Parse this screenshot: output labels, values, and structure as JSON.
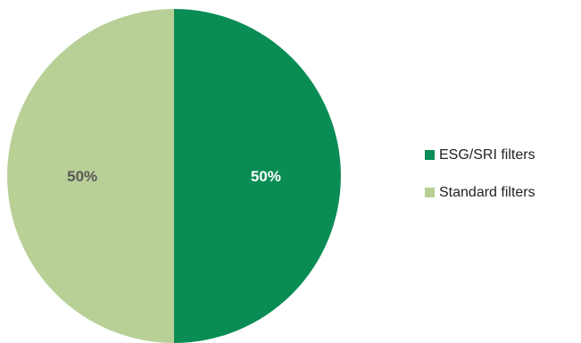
{
  "chart_data": {
    "type": "pie",
    "title": "",
    "slices": [
      {
        "name": "ESG/SRI filters",
        "value": 50,
        "label": "50%",
        "color": "#0a8c55",
        "label_color": "#ffffff"
      },
      {
        "name": "Standard filters",
        "value": 50,
        "label": "50%",
        "color": "#b8cf96",
        "label_color": "#595959"
      }
    ],
    "legend": {
      "placement": "right",
      "entries": [
        "ESG/SRI filters",
        "Standard filters"
      ]
    }
  }
}
